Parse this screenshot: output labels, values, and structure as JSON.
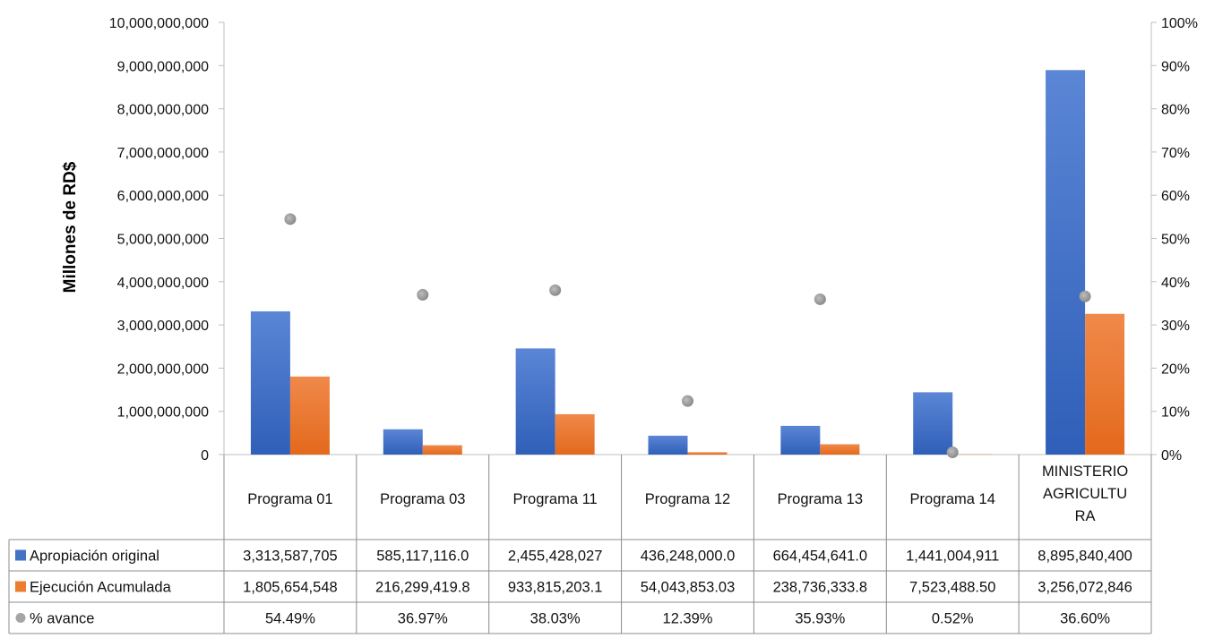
{
  "chart_data": {
    "type": "bar",
    "categories": [
      "Programa 01",
      "Programa 03",
      "Programa 11",
      "Programa 12",
      "Programa 13",
      "Programa 14",
      "MINISTERIO AGRICULTURA"
    ],
    "category_lines": [
      [
        "Programa 01"
      ],
      [
        "Programa 03"
      ],
      [
        "Programa 11"
      ],
      [
        "Programa 12"
      ],
      [
        "Programa 13"
      ],
      [
        "Programa 14"
      ],
      [
        "MINISTERIO",
        "AGRICULTU",
        "RA"
      ]
    ],
    "ylabel": "Millones de RD$",
    "ylim": [
      0,
      10000000000
    ],
    "y_ticks": [
      "0",
      "1,000,000,000",
      "2,000,000,000",
      "3,000,000,000",
      "4,000,000,000",
      "5,000,000,000",
      "6,000,000,000",
      "7,000,000,000",
      "8,000,000,000",
      "9,000,000,000",
      "10,000,000,000"
    ],
    "y2lim": [
      0,
      100
    ],
    "y2_ticks": [
      "0%",
      "10%",
      "20%",
      "30%",
      "40%",
      "50%",
      "60%",
      "70%",
      "80%",
      "90%",
      "100%"
    ],
    "series": [
      {
        "name": "Apropiación original",
        "type": "bar",
        "color": "#4472C4",
        "values": [
          3313587705,
          585117116.0,
          2455428027,
          436248000.0,
          664454641.0,
          1441004911,
          8895840400
        ],
        "labels": [
          "3,313,587,705",
          "585,117,116.0",
          "2,455,428,027",
          "436,248,000.0",
          "664,454,641.0",
          "1,441,004,911",
          "8,895,840,400"
        ]
      },
      {
        "name": "Ejecución Acumulada",
        "type": "bar",
        "color": "#ED7D31",
        "values": [
          1805654548,
          216299419.8,
          933815203.1,
          54043853.03,
          238736333.8,
          7523488.5,
          3256072846
        ],
        "labels": [
          "1,805,654,548",
          "216,299,419.8",
          "933,815,203.1",
          "54,043,853.03",
          "238,736,333.8",
          "7,523,488.50",
          "3,256,072,846"
        ]
      },
      {
        "name": "% avance",
        "type": "scatter",
        "axis": "secondary",
        "color": "#A5A5A5",
        "values": [
          54.49,
          36.97,
          38.03,
          12.39,
          35.93,
          0.52,
          36.6
        ],
        "labels": [
          "54.49%",
          "36.97%",
          "38.03%",
          "12.39%",
          "35.93%",
          "0.52%",
          "36.60%"
        ]
      }
    ],
    "legend": "data-table",
    "grid": false
  }
}
